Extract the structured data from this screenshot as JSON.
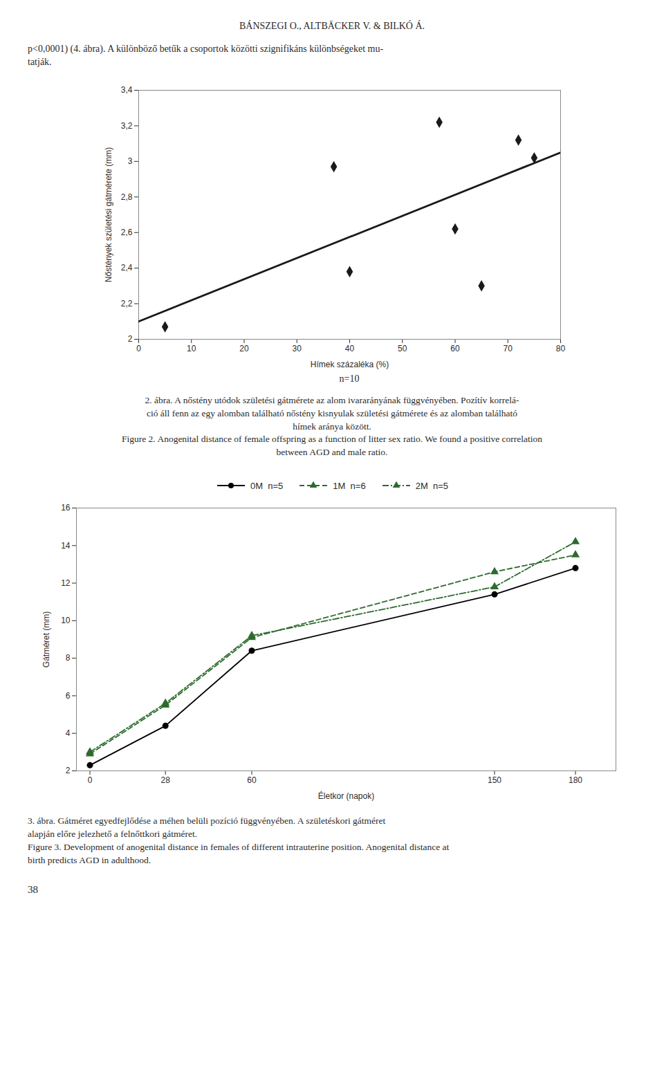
{
  "header": "BÁNSZEGI O., ALTBÄCKER V. & BILKÓ Á.",
  "body_text": "p<0,0001) (4. ábra). A különböző betűk a csoportok közötti szignifikáns különbségeket mu-\ntatják.",
  "chart_data": [
    {
      "type": "scatter",
      "xlabel": "Hímek százaléka (%)",
      "ylabel": "Nőstények születési gátmérete (mm)",
      "annotations": [
        "n=10"
      ],
      "xlim": [
        0,
        80
      ],
      "ylim": [
        2.0,
        3.4
      ],
      "xticks": [
        0,
        10,
        20,
        30,
        40,
        50,
        60,
        70,
        80
      ],
      "yticks": [
        2,
        {
          "value": 2.2,
          "label": "2,2"
        },
        {
          "value": 2.4,
          "label": "2,4"
        },
        {
          "value": 2.6,
          "label": "2,6"
        },
        {
          "value": 2.8,
          "label": "2,8"
        },
        3,
        {
          "value": 3.2,
          "label": "3,2"
        },
        {
          "value": 3.4,
          "label": "3,4"
        }
      ],
      "grid": false,
      "series": [
        {
          "type": "scatter",
          "x": [
            5,
            37,
            40,
            57,
            60,
            65,
            72,
            75
          ],
          "values": [
            2.07,
            2.97,
            2.38,
            3.22,
            2.62,
            2.3,
            3.12,
            3.02
          ],
          "color": "#1a1a1a",
          "marker": "diamond"
        },
        {
          "type": "line",
          "x": [
            0,
            80
          ],
          "values": [
            2.1,
            3.05
          ],
          "color": "#1a1a1a",
          "line_style": "solid"
        }
      ],
      "caption": "2. ábra. A nőstény utódok születési gátmérete az alom ivararányának függvényében. Pozítív korrelá-\nció áll fenn az egy alomban található nőstény kisnyulak születési gátmérete és az alomban található\nhímek aránya között.\nFigure 2. Anogenital distance of female offspring as a function of litter sex ratio. We found a positive correlation\nbetween AGD and male ratio."
    },
    {
      "type": "line",
      "xlabel": "Életkor (napok)",
      "ylabel": "Gátméret (mm)",
      "xlim": [
        -5,
        195
      ],
      "ylim": [
        2,
        16
      ],
      "xticks": [
        0,
        28,
        60,
        150,
        180
      ],
      "yticks": [
        2,
        4,
        6,
        8,
        10,
        12,
        14,
        16
      ],
      "grid": false,
      "legend": "top",
      "x": [
        0,
        28,
        60,
        150,
        180
      ],
      "series": [
        {
          "name": "0M  n=5",
          "values": [
            2.3,
            4.4,
            8.4,
            11.4,
            12.8
          ],
          "color": "#000000",
          "marker": "circle",
          "line_style": "solid"
        },
        {
          "name": "1M  n=6",
          "values": [
            2.9,
            5.5,
            9.1,
            12.6,
            13.5
          ],
          "color": "#2d6b2d",
          "marker": "triangle",
          "line_style": "dashed"
        },
        {
          "name": "2M  n=5",
          "values": [
            3.0,
            5.6,
            9.2,
            11.8,
            14.2
          ],
          "color": "#2d6b2d",
          "marker": "triangle",
          "line_style": "dashdot"
        }
      ],
      "caption": "3. ábra. Gátméret egyedfejlődése a méhen belüli pozíció függvényében. A születéskori gátméret\nalapján előre jelezhető a felnőttkori gátméret.\nFigure 3. Development of anogenital distance in females of different intrauterine position. Anogenital distance at\nbirth predicts AGD in adulthood."
    }
  ],
  "footer": "38"
}
